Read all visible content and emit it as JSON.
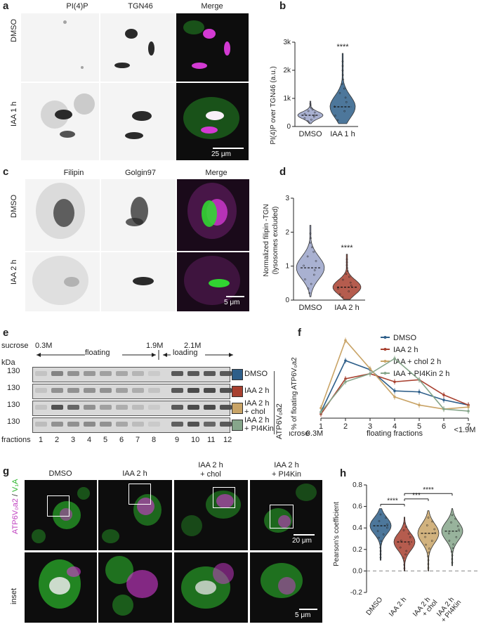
{
  "panels": {
    "a": {
      "letter": "a",
      "headers": [
        "PI(4)P",
        "TGN46",
        "Merge"
      ],
      "header_colors": [
        "#2bb52b",
        "#c040c0",
        "#333333"
      ],
      "rows": [
        "DMSO",
        "IAA 1 h"
      ],
      "scalebar": "25 μm"
    },
    "b": {
      "letter": "b",
      "ylabel": "PI(4)P over TGN46 (a.u.)",
      "yticks": [
        "0",
        "1k",
        "2k",
        "3k"
      ],
      "xticks": [
        "DMSO",
        "IAA 1 h"
      ],
      "sig": "****"
    },
    "c": {
      "letter": "c",
      "headers": [
        "Filipin",
        "Golgin97",
        "Merge"
      ],
      "header_colors": [
        "#c040c0",
        "#2bb52b",
        "#333333"
      ],
      "rows": [
        "DMSO",
        "IAA 2 h"
      ],
      "scalebar": "5 μm"
    },
    "d": {
      "letter": "d",
      "ylabel_line1": "Normalized filipin -TGN",
      "ylabel_line2": "(lysosomes excluded)",
      "yticks": [
        "0",
        "1",
        "2",
        "3"
      ],
      "xticks": [
        "DMSO",
        "IAA 2 h"
      ],
      "sig": "****"
    },
    "e": {
      "letter": "e",
      "sucrose_label": "sucrose",
      "sucrose_marks": [
        "0.3M",
        "1.9M",
        "2.1M"
      ],
      "floating_label": "floating",
      "loading_label": "loading",
      "kda_label": "kDa",
      "mw": [
        "130",
        "130",
        "130",
        "130"
      ],
      "fractions_label": "fractions",
      "fractions": [
        "1",
        "2",
        "3",
        "4",
        "5",
        "6",
        "7",
        "8",
        "9",
        "10",
        "11",
        "12"
      ],
      "side_label": "ATP6V₀a2",
      "conditions": [
        {
          "label1": "DMSO",
          "label2": "",
          "color": "#2e5f8a"
        },
        {
          "label1": "IAA 2 h",
          "label2": "",
          "color": "#a8402f"
        },
        {
          "label1": "IAA 2 h",
          "label2": "+ chol",
          "color": "#c9a467"
        },
        {
          "label1": "IAA 2 h",
          "label2": "+ PI4Kin",
          "color": "#86a68b"
        }
      ]
    },
    "f": {
      "letter": "f",
      "ylabel": "% of floating ATP6V₀a2",
      "xlabel": "floating fractions",
      "sucrose_label": "sucrose",
      "low_mark": "0.3M",
      "high_mark": "<1.9M"
    },
    "g": {
      "letter": "g",
      "headers_line1": [
        "DMSO",
        "IAA 2 h",
        "IAA 2 h",
        "IAA 2 h"
      ],
      "headers_line2": [
        "",
        "",
        "+ chol",
        "+ PI4Kin"
      ],
      "ylabel_a": "ATP6V₀a2",
      "ylabel_sep": " / ",
      "ylabel_b": "V₁A",
      "inset_label": "inset",
      "scalebar_main": "20 μm",
      "scalebar_inset": "5 μm"
    },
    "h": {
      "letter": "h",
      "ylabel": "Pearson's coefficient",
      "yticks": [
        "-0.2",
        "0.0",
        "0.2",
        "0.4",
        "0.6",
        "0.8"
      ],
      "xticks_line1": [
        "DMSO",
        "IAA 2 h",
        "IAA 2 h",
        "IAA 2 h"
      ],
      "xticks_line2": [
        "",
        "",
        "+ chol",
        "+ PI4Kin"
      ],
      "sig": [
        "****",
        "***",
        "****"
      ]
    }
  },
  "chart_data": [
    {
      "panel": "b",
      "type": "violin",
      "categories": [
        "DMSO",
        "IAA 1 h"
      ],
      "series": [
        {
          "name": "DMSO",
          "median": 400,
          "min": 100,
          "max": 900,
          "color": "#9aa3c9"
        },
        {
          "name": "IAA 1 h",
          "median": 700,
          "min": 100,
          "max": 2600,
          "color": "#2e5f8a"
        }
      ],
      "ylim": [
        0,
        3000
      ]
    },
    {
      "panel": "d",
      "type": "violin",
      "categories": [
        "DMSO",
        "IAA 2 h"
      ],
      "series": [
        {
          "name": "DMSO",
          "median": 0.95,
          "min": 0.1,
          "max": 2.2,
          "color": "#9aa3c9"
        },
        {
          "name": "IAA 2 h",
          "median": 0.38,
          "min": 0.02,
          "max": 1.35,
          "color": "#a8402f"
        }
      ],
      "ylim": [
        0,
        3
      ]
    },
    {
      "panel": "f",
      "type": "line",
      "x": [
        1,
        2,
        3,
        4,
        5,
        6,
        7
      ],
      "ylim": [
        0,
        40
      ],
      "legend": "top-right",
      "series": [
        {
          "name": "DMSO",
          "values": [
            3,
            28.5,
            24,
            13.5,
            13,
            9,
            6.5
          ],
          "color": "#2e5f8a"
        },
        {
          "name": "IAA 2 h",
          "values": [
            2,
            19.5,
            22,
            18,
            19,
            11.5,
            6.5
          ],
          "color": "#a8402f"
        },
        {
          "name": "IAA + chol 2 h",
          "values": [
            5,
            38.5,
            24.5,
            10.5,
            6.5,
            4.5,
            5.5
          ],
          "color": "#c9a467"
        },
        {
          "name": "IAA + PI4Kin 2 h",
          "values": [
            3,
            18,
            22,
            29.5,
            19,
            4.5,
            3.5
          ],
          "color": "#86a68b"
        }
      ]
    },
    {
      "panel": "h",
      "type": "violin",
      "categories": [
        "DMSO",
        "IAA 2 h",
        "IAA 2 h + chol",
        "IAA 2 h + PI4Kin"
      ],
      "series": [
        {
          "name": "DMSO",
          "median": 0.42,
          "min": 0.1,
          "max": 0.58,
          "color": "#2e5f8a"
        },
        {
          "name": "IAA 2 h",
          "median": 0.27,
          "min": 0.0,
          "max": 0.5,
          "color": "#a8402f"
        },
        {
          "name": "IAA 2 h + chol",
          "median": 0.35,
          "min": 0.0,
          "max": 0.56,
          "color": "#c9a467"
        },
        {
          "name": "IAA 2 h + PI4Kin",
          "median": 0.37,
          "min": 0.05,
          "max": 0.58,
          "color": "#86a68b"
        }
      ],
      "ylim": [
        -0.2,
        0.8
      ]
    }
  ]
}
